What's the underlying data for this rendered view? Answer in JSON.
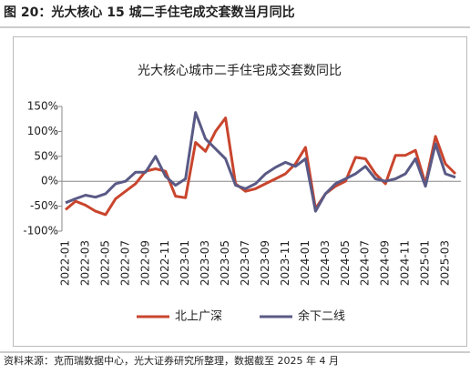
{
  "header": {
    "title": "图 20：光大核心 15 城二手住宅成交套数当月同比"
  },
  "chart_data": {
    "type": "line",
    "title": "光大核心城市二手住宅成交套数同比",
    "categories": [
      "2022-01",
      null,
      "2022-03",
      null,
      "2022-05",
      null,
      "2022-07",
      null,
      "2022-09",
      null,
      "2022-11",
      null,
      "2023-01",
      null,
      "2023-03",
      null,
      "2023-05",
      null,
      "2023-07",
      null,
      "2023-09",
      null,
      "2023-11",
      null,
      "2024-01",
      null,
      "2024-03",
      null,
      "2024-05",
      null,
      "2024-07",
      null,
      "2024-09",
      null,
      "2024-11",
      null,
      "2025-01",
      null,
      "2025-03",
      null
    ],
    "series": [
      {
        "name": "北上广深",
        "color": "#c9452d",
        "values": [
          -57,
          -40,
          -48,
          -60,
          -67,
          -35,
          -20,
          -5,
          20,
          25,
          20,
          -30,
          -33,
          78,
          60,
          100,
          127,
          -5,
          -20,
          -15,
          -5,
          5,
          15,
          35,
          68,
          -55,
          -25,
          -10,
          0,
          48,
          45,
          15,
          -5,
          52,
          52,
          62,
          -5,
          90,
          35,
          15
        ]
      },
      {
        "name": "余下二线",
        "color": "#5a5a86",
        "values": [
          -43,
          -35,
          -28,
          -32,
          -25,
          -5,
          0,
          18,
          18,
          50,
          10,
          -8,
          5,
          138,
          85,
          65,
          45,
          -8,
          -15,
          -5,
          15,
          28,
          38,
          30,
          45,
          -60,
          -25,
          -5,
          5,
          15,
          30,
          5,
          0,
          5,
          15,
          45,
          -10,
          75,
          15,
          8
        ]
      }
    ],
    "ylim": [
      -100,
      150
    ],
    "yticks": [
      {
        "value": -100,
        "label": "-100%"
      },
      {
        "value": -50,
        "label": "-50%"
      },
      {
        "value": 0,
        "label": "0%"
      },
      {
        "value": 50,
        "label": "50%"
      },
      {
        "value": 100,
        "label": "100%"
      },
      {
        "value": 150,
        "label": "150%"
      }
    ],
    "legend": "bottom"
  },
  "footer": {
    "source": "资料来源：克而瑞数据中心，光大证券研究所整理，数据截至 2025 年 4 月"
  }
}
